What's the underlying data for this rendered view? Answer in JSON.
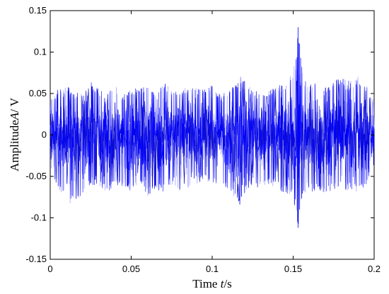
{
  "chart_data": {
    "type": "line",
    "title": "",
    "xlabel_parts": [
      "Time ",
      "t",
      "/s"
    ],
    "ylabel_parts": [
      "Amplitude",
      "A",
      "/ V"
    ],
    "xlim": [
      0,
      0.2
    ],
    "ylim": [
      -0.15,
      0.15
    ],
    "xticks": [
      0,
      0.05,
      0.1,
      0.15,
      0.2
    ],
    "xtick_labels": [
      "0",
      "0.05",
      "0.1",
      "0.15",
      "0.2"
    ],
    "yticks": [
      -0.15,
      -0.1,
      -0.05,
      0,
      0.05,
      0.1,
      0.15
    ],
    "ytick_labels": [
      "-0.15",
      "-0.1",
      "-0.05",
      "0",
      "0.05",
      "0.1",
      "0.15"
    ],
    "grid": false,
    "line_color": "#0000ff",
    "series": [
      {
        "x": [
          0,
          0.005,
          0.01,
          0.015,
          0.02,
          0.025,
          0.03,
          0.035,
          0.04,
          0.045,
          0.05,
          0.055,
          0.06,
          0.065,
          0.07,
          0.075,
          0.08,
          0.085,
          0.09,
          0.095,
          0.1,
          0.105,
          0.11,
          0.115,
          0.117,
          0.119,
          0.12,
          0.122,
          0.125,
          0.13,
          0.135,
          0.14,
          0.145,
          0.15,
          0.152,
          0.153,
          0.154,
          0.156,
          0.16,
          0.165,
          0.17,
          0.175,
          0.18,
          0.185,
          0.19,
          0.195,
          0.2
        ],
        "y_max": [
          0.04,
          0.058,
          0.06,
          0.05,
          0.055,
          0.065,
          0.055,
          0.05,
          0.06,
          0.048,
          0.055,
          0.058,
          0.06,
          0.05,
          0.065,
          0.055,
          0.05,
          0.06,
          0.058,
          0.055,
          0.06,
          0.05,
          0.055,
          0.06,
          0.07,
          0.075,
          0.065,
          0.06,
          0.055,
          0.05,
          0.055,
          0.06,
          0.06,
          0.08,
          0.095,
          0.13,
          0.11,
          0.07,
          0.06,
          0.065,
          0.06,
          0.065,
          0.07,
          0.065,
          0.07,
          0.06,
          0.04
        ],
        "y_min": [
          -0.04,
          -0.065,
          -0.08,
          -0.085,
          -0.07,
          -0.06,
          -0.065,
          -0.07,
          -0.06,
          -0.065,
          -0.07,
          -0.06,
          -0.075,
          -0.065,
          -0.07,
          -0.06,
          -0.07,
          -0.065,
          -0.06,
          -0.055,
          -0.06,
          -0.06,
          -0.065,
          -0.08,
          -0.085,
          -0.08,
          -0.07,
          -0.065,
          -0.06,
          -0.065,
          -0.06,
          -0.065,
          -0.07,
          -0.075,
          -0.1,
          -0.112,
          -0.09,
          -0.07,
          -0.07,
          -0.065,
          -0.075,
          -0.065,
          -0.07,
          -0.065,
          -0.07,
          -0.06,
          -0.035
        ]
      }
    ]
  }
}
